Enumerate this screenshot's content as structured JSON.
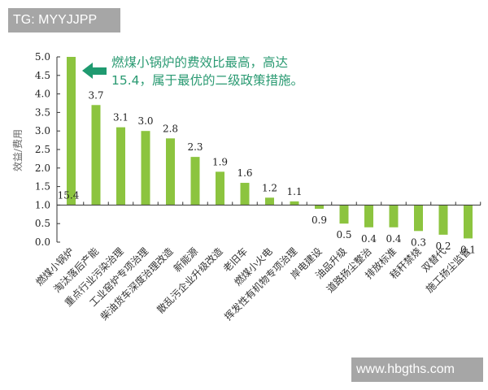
{
  "watermarks": {
    "top": "TG: MYYJJPP",
    "bottom": "www.hbgths.com"
  },
  "colors": {
    "bar": "#8cc43f",
    "arrow": "#1f9a70",
    "annotation_text": "#2a9a72",
    "watermark_bg": "#a6a6a6"
  },
  "annotation": {
    "line1": "燃煤小锅炉的费效比最高，高达",
    "line2": "15.4，属于最优的二级政策措施。"
  },
  "chart_data": {
    "type": "bar",
    "title": "",
    "xlabel": "",
    "ylabel": "效益/费用",
    "ylim": [
      0,
      5.0
    ],
    "baseline": 1.0,
    "yticks": [
      "0.0",
      "0.5",
      "1.0",
      "1.5",
      "2.0",
      "2.5",
      "3.0",
      "3.5",
      "4.0",
      "4.5",
      "5.0"
    ],
    "grid": false,
    "legend": null,
    "categories": [
      "燃煤小锅炉",
      "淘汰落后产能",
      "重点行业污染治理",
      "工业窑炉专项治理",
      "柴油货车深度治理改造",
      "新能源",
      "散乱污企业升级改造",
      "老旧车",
      "燃煤小火电",
      "挥发性有机物专项治理",
      "岸电建设",
      "油品升级",
      "道路扬尘整治",
      "排放标准",
      "秸秆禁烧",
      "双替代",
      "施工扬尘监管"
    ],
    "values": [
      15.4,
      3.7,
      3.1,
      3.0,
      2.8,
      2.3,
      1.9,
      1.6,
      1.2,
      1.1,
      0.9,
      0.5,
      0.4,
      0.4,
      0.3,
      0.2,
      0.1
    ],
    "value_labels": [
      "15.4",
      "3.7",
      "3.1",
      "3.0",
      "2.8",
      "2.3",
      "1.9",
      "1.6",
      "1.2",
      "1.1",
      "0.9",
      "0.5",
      "0.4",
      "0.4",
      "0.3",
      "0.2",
      "0.1"
    ],
    "annotations": [
      "燃煤小锅炉的费效比最高，高达15.4，属于最优的二级政策措施。"
    ],
    "notes": "Bars drawn relative to baseline 1.0; first bar (15.4) is truncated at axis max 5.0."
  }
}
